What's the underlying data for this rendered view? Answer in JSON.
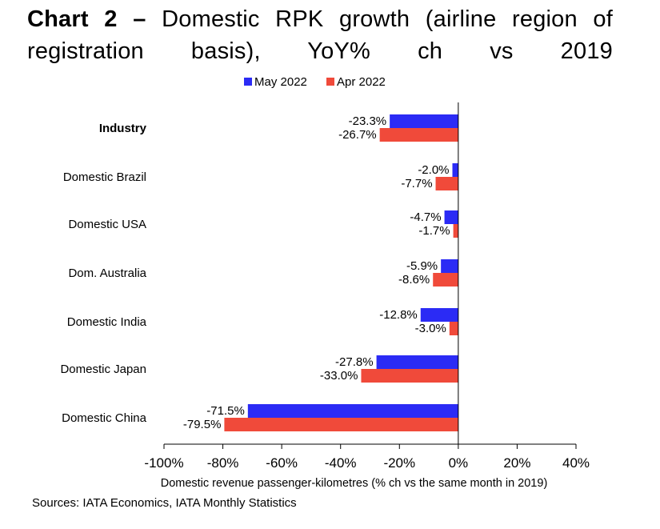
{
  "title": {
    "lead": "Chart 2 –",
    "rest": "Domestic RPK growth (airline region of registration basis), YoY% ch vs 2019"
  },
  "source": "Sources: IATA Economics, IATA Monthly Statistics",
  "chart_data": {
    "type": "bar",
    "orientation": "horizontal",
    "categories": [
      "Industry",
      "Domestic Brazil",
      "Domestic USA",
      "Dom. Australia",
      "Domestic India",
      "Domestic Japan",
      "Domestic China"
    ],
    "bold_categories": [
      "Industry"
    ],
    "series": [
      {
        "name": "May 2022",
        "color": "#2b2bf5",
        "values": [
          -23.3,
          -2.0,
          -4.7,
          -5.9,
          -12.8,
          -27.8,
          -71.5
        ]
      },
      {
        "name": "Apr 2022",
        "color": "#f04a3a",
        "values": [
          -26.7,
          -7.7,
          -1.7,
          -8.6,
          -3.0,
          -33.0,
          -79.5
        ]
      }
    ],
    "xlabel": "Domestic revenue passenger-kilometres (% ch vs the same month in 2019)",
    "xlim": [
      -100,
      40
    ],
    "xticks": [
      -100,
      -80,
      -60,
      -40,
      -20,
      0,
      20,
      40
    ],
    "tick_format": "percent",
    "legend_position": "top",
    "grid": false
  }
}
